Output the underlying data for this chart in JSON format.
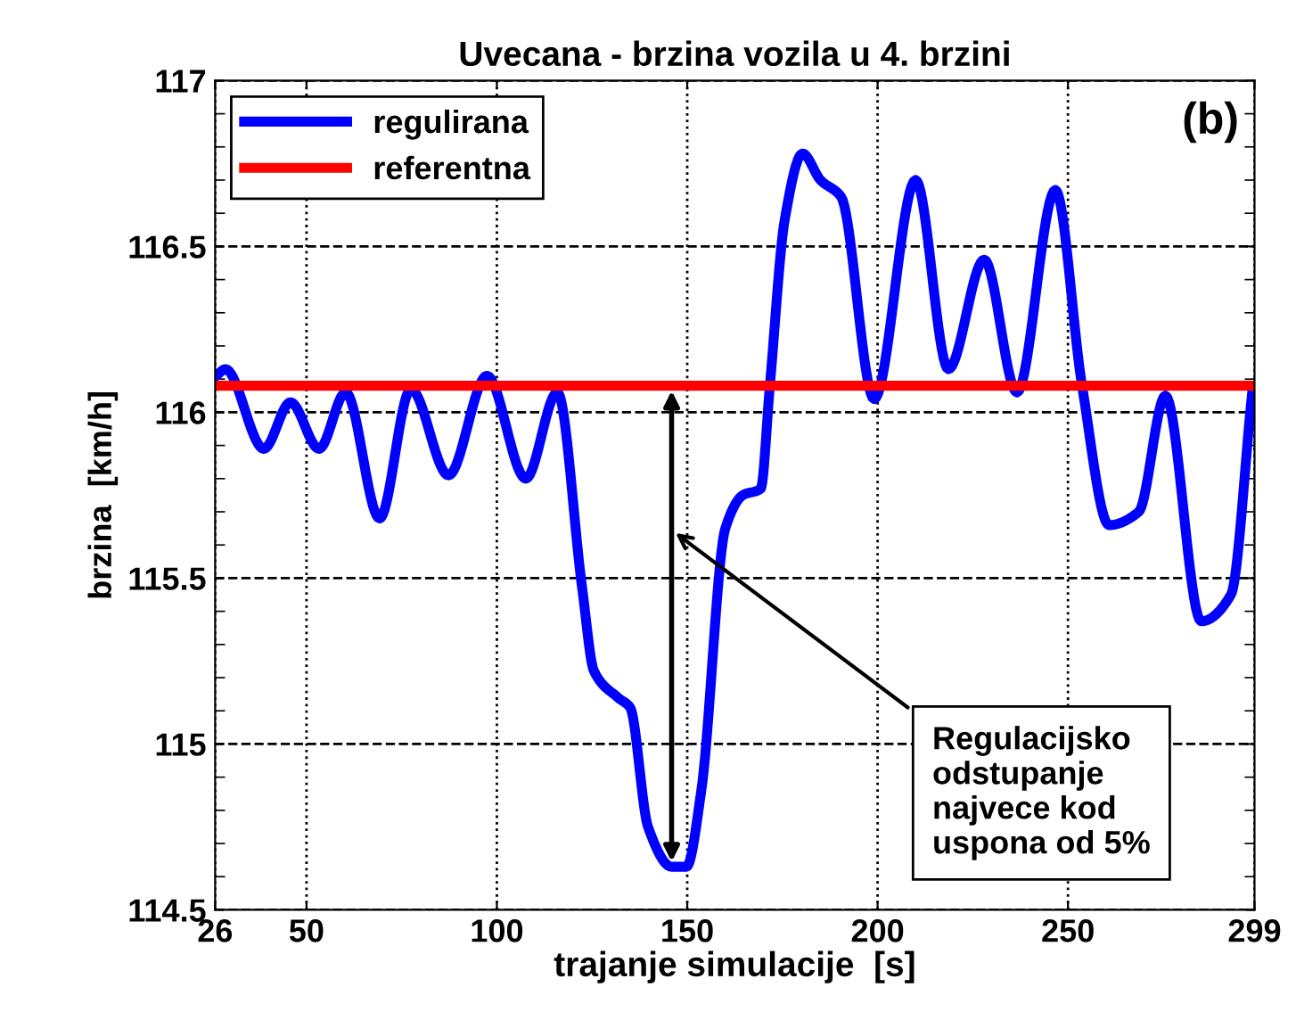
{
  "chart_data": {
    "type": "line",
    "title": "Uvecana - brzina vozila u 4. brzini",
    "xlabel": "trajanje simulacije  [s]",
    "ylabel": "brzina  [km/h]",
    "series": [
      {
        "name": "regulirana",
        "color": "#0000ff",
        "x": [
          26.3,
          28.7,
          38.8,
          45.8,
          53.3,
          60.3,
          69.2,
          77.4,
          87.3,
          97.4,
          107.6,
          115.9,
          122.4,
          125.5,
          131.8,
          135,
          139.7,
          145.9,
          149.8,
          153.7,
          160,
          164.6,
          169.3,
          171.7,
          175.6,
          180.3,
          185,
          190.4,
          199.1,
          210,
          218.6,
          228,
          236.6,
          246.7,
          253.7,
          260.8,
          268.6,
          275.6,
          285,
          292.8,
          298.3
        ],
        "values": [
          116.11,
          116.13,
          115.89,
          116.03,
          115.89,
          116.06,
          115.68,
          116.07,
          115.81,
          116.11,
          115.8,
          116.06,
          115.47,
          115.22,
          115.14,
          115.11,
          114.75,
          114.63,
          114.63,
          114.86,
          115.65,
          115.75,
          115.77,
          116.08,
          116.58,
          116.78,
          116.7,
          116.65,
          116.04,
          116.7,
          116.13,
          116.46,
          116.06,
          116.67,
          116.08,
          115.66,
          115.7,
          116.05,
          115.37,
          115.45,
          116.05
        ]
      },
      {
        "name": "referentna",
        "color": "#ff0000",
        "x": [
          26,
          299
        ],
        "values": [
          116.08,
          116.08
        ]
      }
    ],
    "annotations": [
      "(b)",
      "Regulacijsko\nodstupanje\nnajvece kod\nuspona od 5%"
    ],
    "xlim": [
      26,
      299
    ],
    "xticks": [
      26,
      50,
      100,
      150,
      200,
      250,
      299
    ],
    "ylim": [
      114.5,
      117
    ],
    "yticks": [
      114.5,
      115,
      115.5,
      116,
      116.5,
      117
    ],
    "grid": true,
    "legend": "top left",
    "line_style": "solid",
    "marker": "none"
  }
}
